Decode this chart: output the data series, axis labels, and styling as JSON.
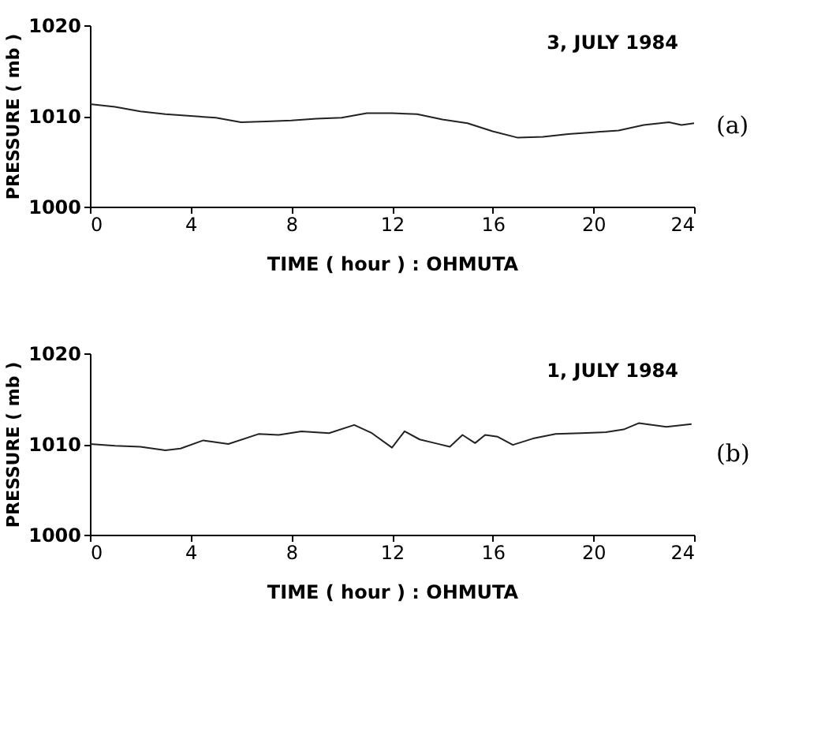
{
  "chart_data": [
    {
      "type": "line",
      "title": "3, JULY 1984",
      "xlabel": "TIME ( hour ) : OHMUTA",
      "ylabel": "PRESSURE ( mb )",
      "annotations": [
        "(a)"
      ],
      "xlim": [
        0,
        24
      ],
      "xticks": [
        0,
        4,
        8,
        12,
        16,
        20,
        24
      ],
      "ylim": [
        1000,
        1020
      ],
      "yticks": [
        1000,
        1010,
        1020
      ],
      "grid": false,
      "marker": "none",
      "line_style": "solid",
      "series": [
        {
          "color": "#222222",
          "x": [
            0,
            1,
            2,
            3,
            4,
            5,
            6,
            7,
            8,
            9,
            10,
            11,
            12,
            13,
            14,
            15,
            16,
            17,
            18,
            19,
            20,
            21,
            22,
            23,
            23.5,
            24
          ],
          "values": [
            1011.3,
            1011.0,
            1010.5,
            1010.2,
            1010.0,
            1009.8,
            1009.3,
            1009.4,
            1009.5,
            1009.7,
            1009.8,
            1010.3,
            1010.3,
            1010.2,
            1009.6,
            1009.2,
            1008.3,
            1007.6,
            1007.7,
            1008.0,
            1008.2,
            1008.4,
            1009.0,
            1009.3,
            1009.0,
            1009.2
          ]
        }
      ]
    },
    {
      "type": "line",
      "title": "1, JULY 1984",
      "xlabel": "TIME ( hour ) : OHMUTA",
      "ylabel": "PRESSURE ( mb )",
      "annotations": [
        "(b)"
      ],
      "xlim": [
        0,
        24
      ],
      "xticks": [
        0,
        4,
        8,
        12,
        16,
        20,
        24
      ],
      "ylim": [
        1000,
        1020
      ],
      "yticks": [
        1000,
        1010,
        1020
      ],
      "grid": false,
      "marker": "none",
      "line_style": "solid",
      "series": [
        {
          "color": "#222222",
          "x": [
            0,
            1,
            2,
            3.0,
            3.6,
            4.5,
            5.5,
            6.7,
            7.5,
            8.4,
            9.5,
            10.5,
            11.2,
            12.0,
            12.5,
            13.1,
            13.7,
            14.3,
            14.8,
            15.3,
            15.7,
            16.2,
            16.8,
            17.6,
            18.5,
            19.5,
            20.5,
            21.2,
            21.8,
            22.9,
            23.9
          ],
          "values": [
            1010.0,
            1009.8,
            1009.7,
            1009.3,
            1009.5,
            1010.4,
            1010.0,
            1011.1,
            1011.0,
            1011.4,
            1011.2,
            1012.1,
            1011.2,
            1009.6,
            1011.4,
            1010.5,
            1010.1,
            1009.7,
            1011.0,
            1010.1,
            1011.0,
            1010.8,
            1009.9,
            1010.6,
            1011.1,
            1011.2,
            1011.3,
            1011.6,
            1012.3,
            1011.9,
            1012.2
          ]
        }
      ]
    }
  ]
}
